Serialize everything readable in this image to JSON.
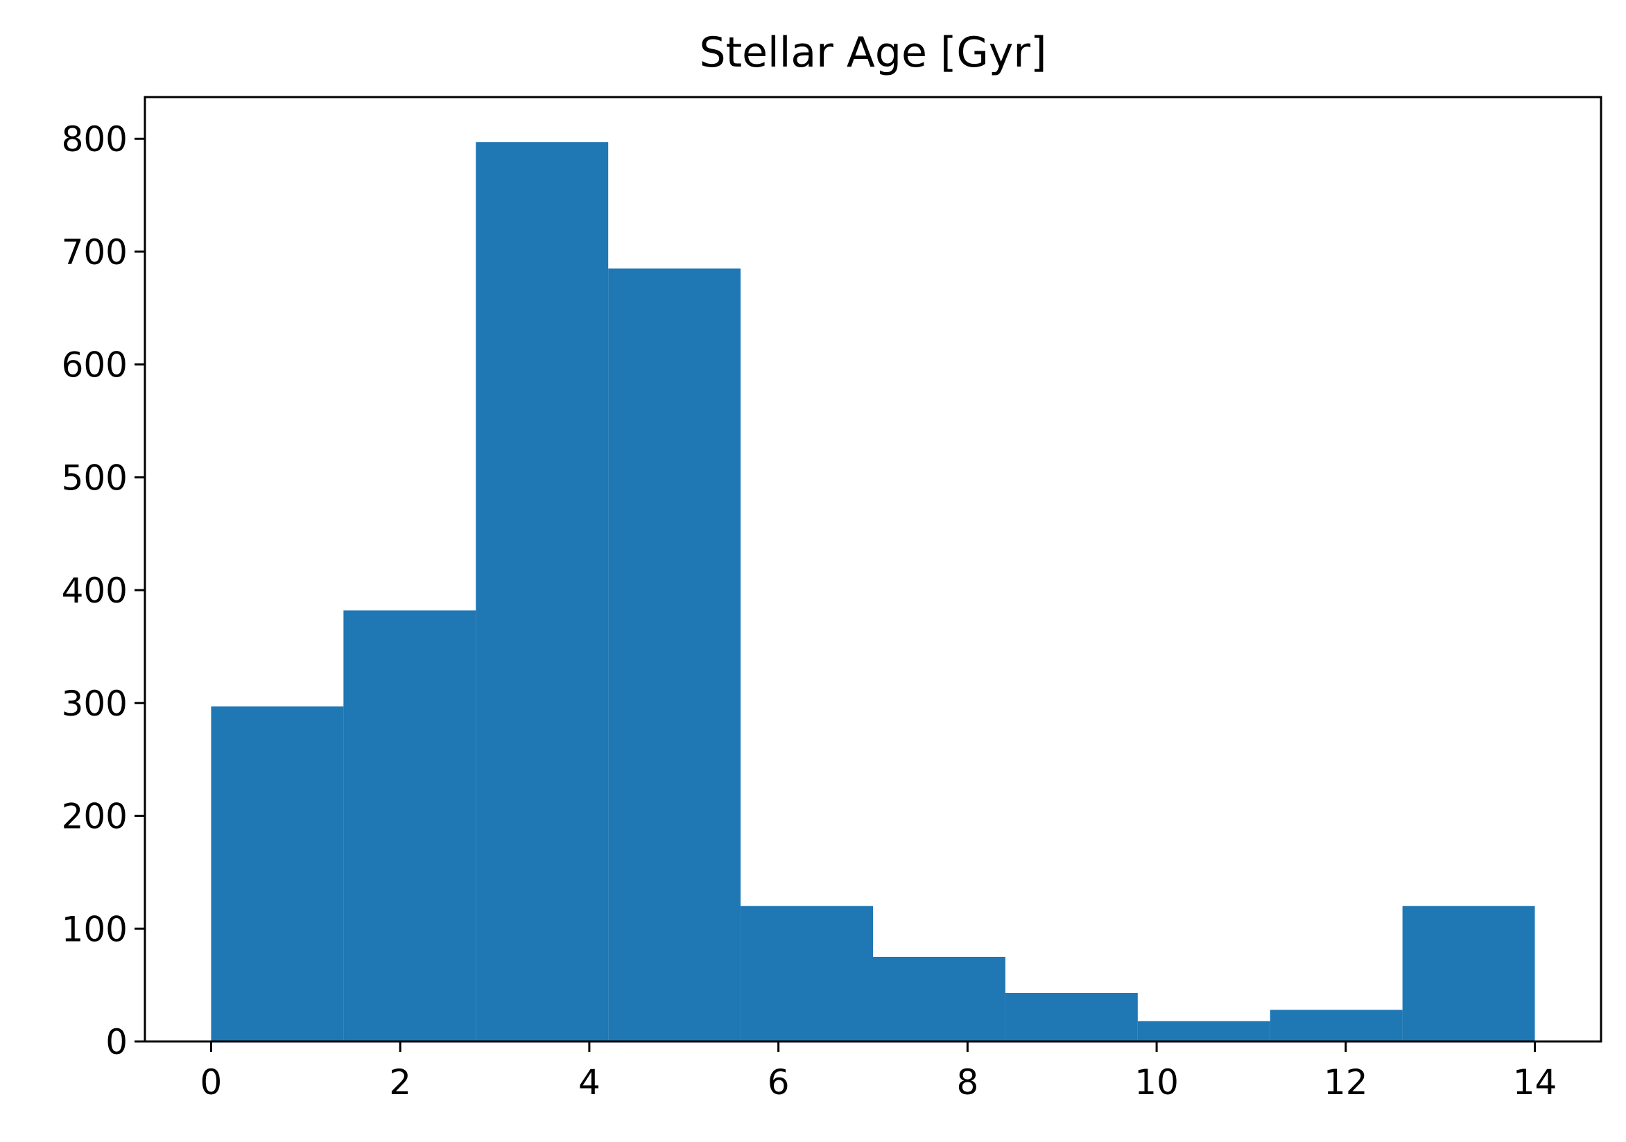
{
  "chart_data": {
    "type": "bar",
    "title": "Stellar Age [Gyr]",
    "xlabel": "",
    "ylabel": "",
    "bin_edges": [
      0,
      1.4,
      2.8,
      4.2,
      5.6,
      7.0,
      8.4,
      9.8,
      11.2,
      12.6,
      14.0
    ],
    "values": [
      297,
      382,
      797,
      685,
      120,
      75,
      43,
      18,
      28,
      120
    ],
    "xlim": [
      -0.7,
      14.7
    ],
    "ylim": [
      0,
      837
    ],
    "xticks": [
      0,
      2,
      4,
      6,
      8,
      10,
      12,
      14
    ],
    "xtick_labels": [
      "0",
      "2",
      "4",
      "6",
      "8",
      "10",
      "12",
      "14"
    ],
    "yticks": [
      0,
      100,
      200,
      300,
      400,
      500,
      600,
      700,
      800
    ],
    "ytick_labels": [
      "0",
      "100",
      "200",
      "300",
      "400",
      "500",
      "600",
      "700",
      "800"
    ],
    "grid": false,
    "legend": "none",
    "bar_color": "#1f77b4"
  }
}
